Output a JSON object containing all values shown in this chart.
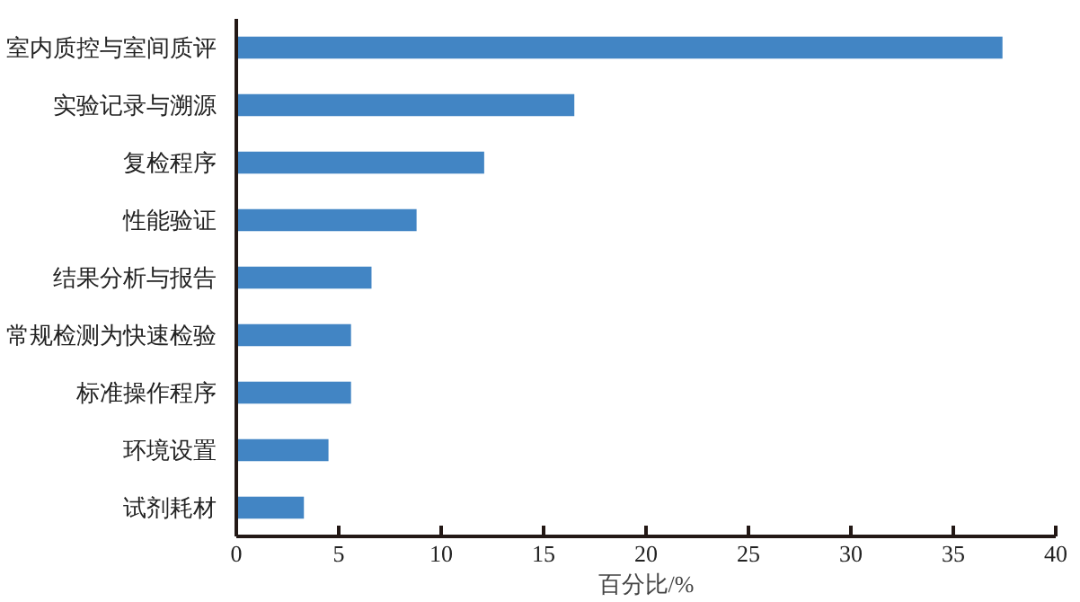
{
  "chart_data": {
    "type": "bar",
    "orientation": "horizontal",
    "xlabel": "百分比/%",
    "categories": [
      "室内质控与室间质评",
      "实验记录与溯源",
      "复检程序",
      "性能验证",
      "结果分析与报告",
      "常规检测为快速检验",
      "标准操作程序",
      "环境设置",
      "试剂耗材"
    ],
    "values": [
      37.4,
      16.5,
      12.1,
      8.8,
      6.6,
      5.6,
      5.6,
      4.5,
      3.3
    ],
    "color": "#4285c4",
    "xlim": [
      0,
      40
    ],
    "xticks": [
      0,
      5,
      10,
      15,
      20,
      25,
      30,
      35,
      40
    ],
    "grid": false
  }
}
